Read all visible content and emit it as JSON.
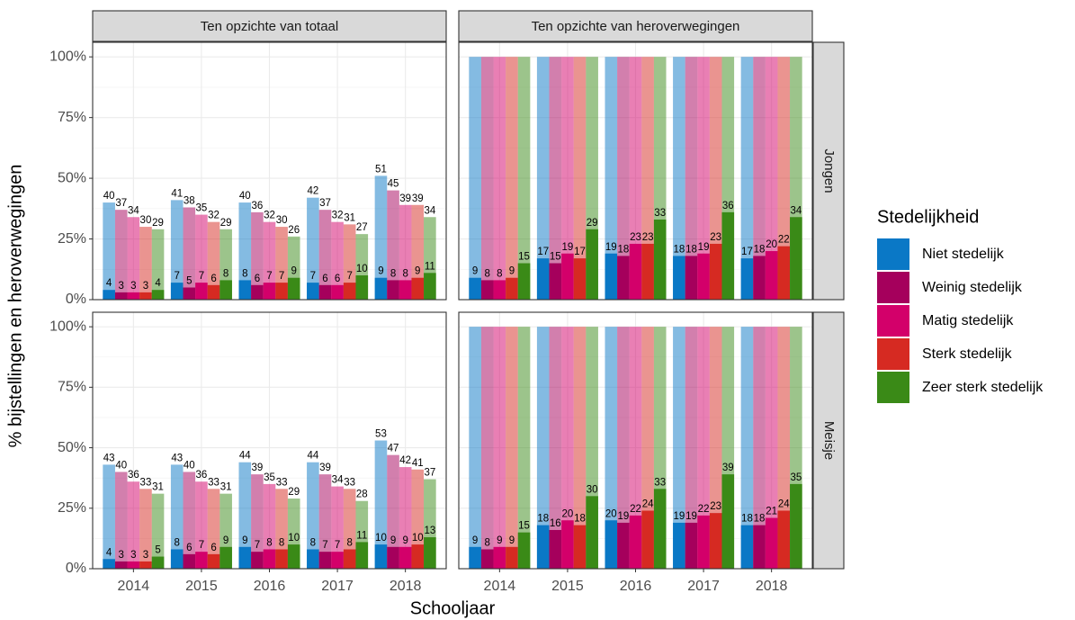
{
  "y_label": "% bijstellingen en heroverwegingen",
  "x_label": "Schooljaar",
  "legend_title": "Stedelijkheid",
  "chart_data": [
    {
      "type": "bar",
      "strip_top": "Ten opzichte van totaal",
      "ylim": [
        0,
        106
      ],
      "yticks": [
        {
          "value": 0,
          "label": "0%"
        },
        {
          "value": 25,
          "label": "25%"
        },
        {
          "value": 50,
          "label": "50%"
        },
        {
          "value": 75,
          "label": "75%"
        },
        {
          "value": 100,
          "label": "100%"
        }
      ],
      "grid": true,
      "total_labels": true,
      "total_opacity": 0.5,
      "series": [
        {
          "name": "Niet stedelijk",
          "color": "#0a78c6",
          "values": [
            4,
            7,
            8,
            7,
            9
          ],
          "totals": [
            40,
            41,
            40,
            42,
            51
          ]
        },
        {
          "name": "Weinig stedelijk",
          "color": "#a5005c",
          "values": [
            3,
            5,
            6,
            6,
            8
          ],
          "totals": [
            37,
            38,
            36,
            37,
            45
          ]
        },
        {
          "name": "Matig stedelijk",
          "color": "#d3006a",
          "values": [
            3,
            7,
            7,
            6,
            8
          ],
          "totals": [
            34,
            35,
            32,
            32,
            39
          ]
        },
        {
          "name": "Sterk stedelijk",
          "color": "#d62a22",
          "values": [
            3,
            6,
            7,
            7,
            9
          ],
          "totals": [
            30,
            32,
            30,
            31,
            39
          ]
        },
        {
          "name": "Zeer sterk stedelijk",
          "color": "#3a8a17",
          "values": [
            4,
            8,
            9,
            10,
            11
          ],
          "totals": [
            29,
            29,
            26,
            27,
            34
          ]
        }
      ]
    },
    {
      "type": "bar",
      "strip_top": "Ten opzichte van heroverwegingen",
      "strip_right": "Jongen",
      "ylim": [
        0,
        106
      ],
      "grid": true,
      "total_labels": false,
      "total_opacity": 0.5,
      "series": [
        {
          "values": [
            9,
            17,
            19,
            18,
            17
          ],
          "totals": [
            100,
            100,
            100,
            100,
            100
          ]
        },
        {
          "values": [
            8,
            15,
            18,
            18,
            18
          ],
          "totals": [
            100,
            100,
            100,
            100,
            100
          ]
        },
        {
          "values": [
            8,
            19,
            23,
            19,
            20
          ],
          "totals": [
            100,
            100,
            100,
            100,
            100
          ]
        },
        {
          "values": [
            9,
            17,
            23,
            23,
            22
          ],
          "totals": [
            100,
            100,
            100,
            100,
            100
          ]
        },
        {
          "values": [
            15,
            29,
            33,
            36,
            34
          ],
          "totals": [
            100,
            100,
            100,
            100,
            100
          ]
        }
      ]
    },
    {
      "type": "bar",
      "ylim": [
        0,
        106
      ],
      "yticks": [
        {
          "value": 0,
          "label": "0%"
        },
        {
          "value": 25,
          "label": "25%"
        },
        {
          "value": 50,
          "label": "50%"
        },
        {
          "value": 75,
          "label": "75%"
        },
        {
          "value": 100,
          "label": "100%"
        }
      ],
      "categories": [
        "2014",
        "2015",
        "2016",
        "2017",
        "2018"
      ],
      "grid": true,
      "total_labels": true,
      "total_opacity": 0.5,
      "series": [
        {
          "values": [
            4,
            8,
            9,
            8,
            10
          ],
          "totals": [
            43,
            43,
            44,
            44,
            53
          ]
        },
        {
          "values": [
            3,
            6,
            7,
            7,
            9
          ],
          "totals": [
            40,
            40,
            39,
            39,
            47
          ]
        },
        {
          "values": [
            3,
            7,
            8,
            7,
            9
          ],
          "totals": [
            36,
            36,
            35,
            34,
            42
          ]
        },
        {
          "values": [
            3,
            6,
            8,
            8,
            10
          ],
          "totals": [
            33,
            33,
            33,
            33,
            41
          ]
        },
        {
          "values": [
            5,
            9,
            10,
            11,
            13
          ],
          "totals": [
            31,
            31,
            29,
            28,
            37
          ]
        }
      ]
    },
    {
      "type": "bar",
      "strip_right": "Meisje",
      "ylim": [
        0,
        106
      ],
      "categories": [
        "2014",
        "2015",
        "2016",
        "2017",
        "2018"
      ],
      "grid": true,
      "total_labels": false,
      "total_opacity": 0.5,
      "series": [
        {
          "values": [
            9,
            18,
            20,
            19,
            18
          ],
          "totals": [
            100,
            100,
            100,
            100,
            100
          ]
        },
        {
          "values": [
            8,
            16,
            19,
            19,
            18
          ],
          "totals": [
            100,
            100,
            100,
            100,
            100
          ]
        },
        {
          "values": [
            9,
            20,
            22,
            22,
            21
          ],
          "totals": [
            100,
            100,
            100,
            100,
            100
          ]
        },
        {
          "values": [
            9,
            18,
            24,
            23,
            24
          ],
          "totals": [
            100,
            100,
            100,
            100,
            100
          ]
        },
        {
          "values": [
            15,
            30,
            33,
            39,
            35
          ],
          "totals": [
            100,
            100,
            100,
            100,
            100
          ]
        }
      ]
    }
  ]
}
